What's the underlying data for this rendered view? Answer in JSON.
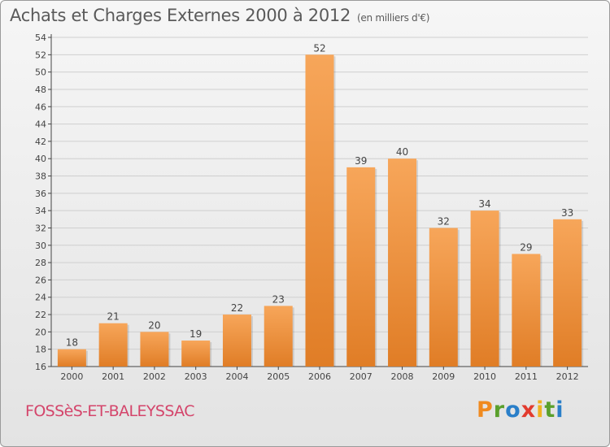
{
  "header": {
    "title": "Achats et Charges Externes 2000 à 2012",
    "unit_note": "(en milliers d'€)"
  },
  "footer": {
    "commune": "FOSSèS-ET-BALEYSSAC",
    "logo_text": "Proxiti",
    "logo_letters": [
      {
        "ch": "P",
        "color": "#f08a1f"
      },
      {
        "ch": "r",
        "color": "#5aa02c"
      },
      {
        "ch": "o",
        "color": "#2a7fc9"
      },
      {
        "ch": "x",
        "color": "#e23b2e"
      },
      {
        "ch": "i",
        "color": "#f0b21f"
      },
      {
        "ch": "t",
        "color": "#5aa02c"
      },
      {
        "ch": "i",
        "color": "#2a7fc9"
      }
    ]
  },
  "colors": {
    "bar_top": "#f7a65a",
    "bar_bottom": "#e07d26",
    "grid": "#cfcfcf",
    "axis": "#444444",
    "label": "#444444"
  },
  "chart_data": {
    "type": "bar",
    "title": "Achats et Charges Externes 2000 à 2012",
    "subtitle": "(en milliers d'€)",
    "categories": [
      "2000",
      "2001",
      "2002",
      "2003",
      "2004",
      "2005",
      "2006",
      "2007",
      "2008",
      "2009",
      "2010",
      "2011",
      "2012"
    ],
    "values": [
      18,
      21,
      20,
      19,
      22,
      23,
      52,
      39,
      40,
      32,
      34,
      29,
      33
    ],
    "ylim": [
      16,
      54
    ],
    "yticks": [
      16,
      18,
      20,
      22,
      24,
      26,
      28,
      30,
      32,
      34,
      36,
      38,
      40,
      42,
      44,
      46,
      48,
      50,
      52,
      54
    ],
    "grid": true,
    "legend": "none"
  }
}
